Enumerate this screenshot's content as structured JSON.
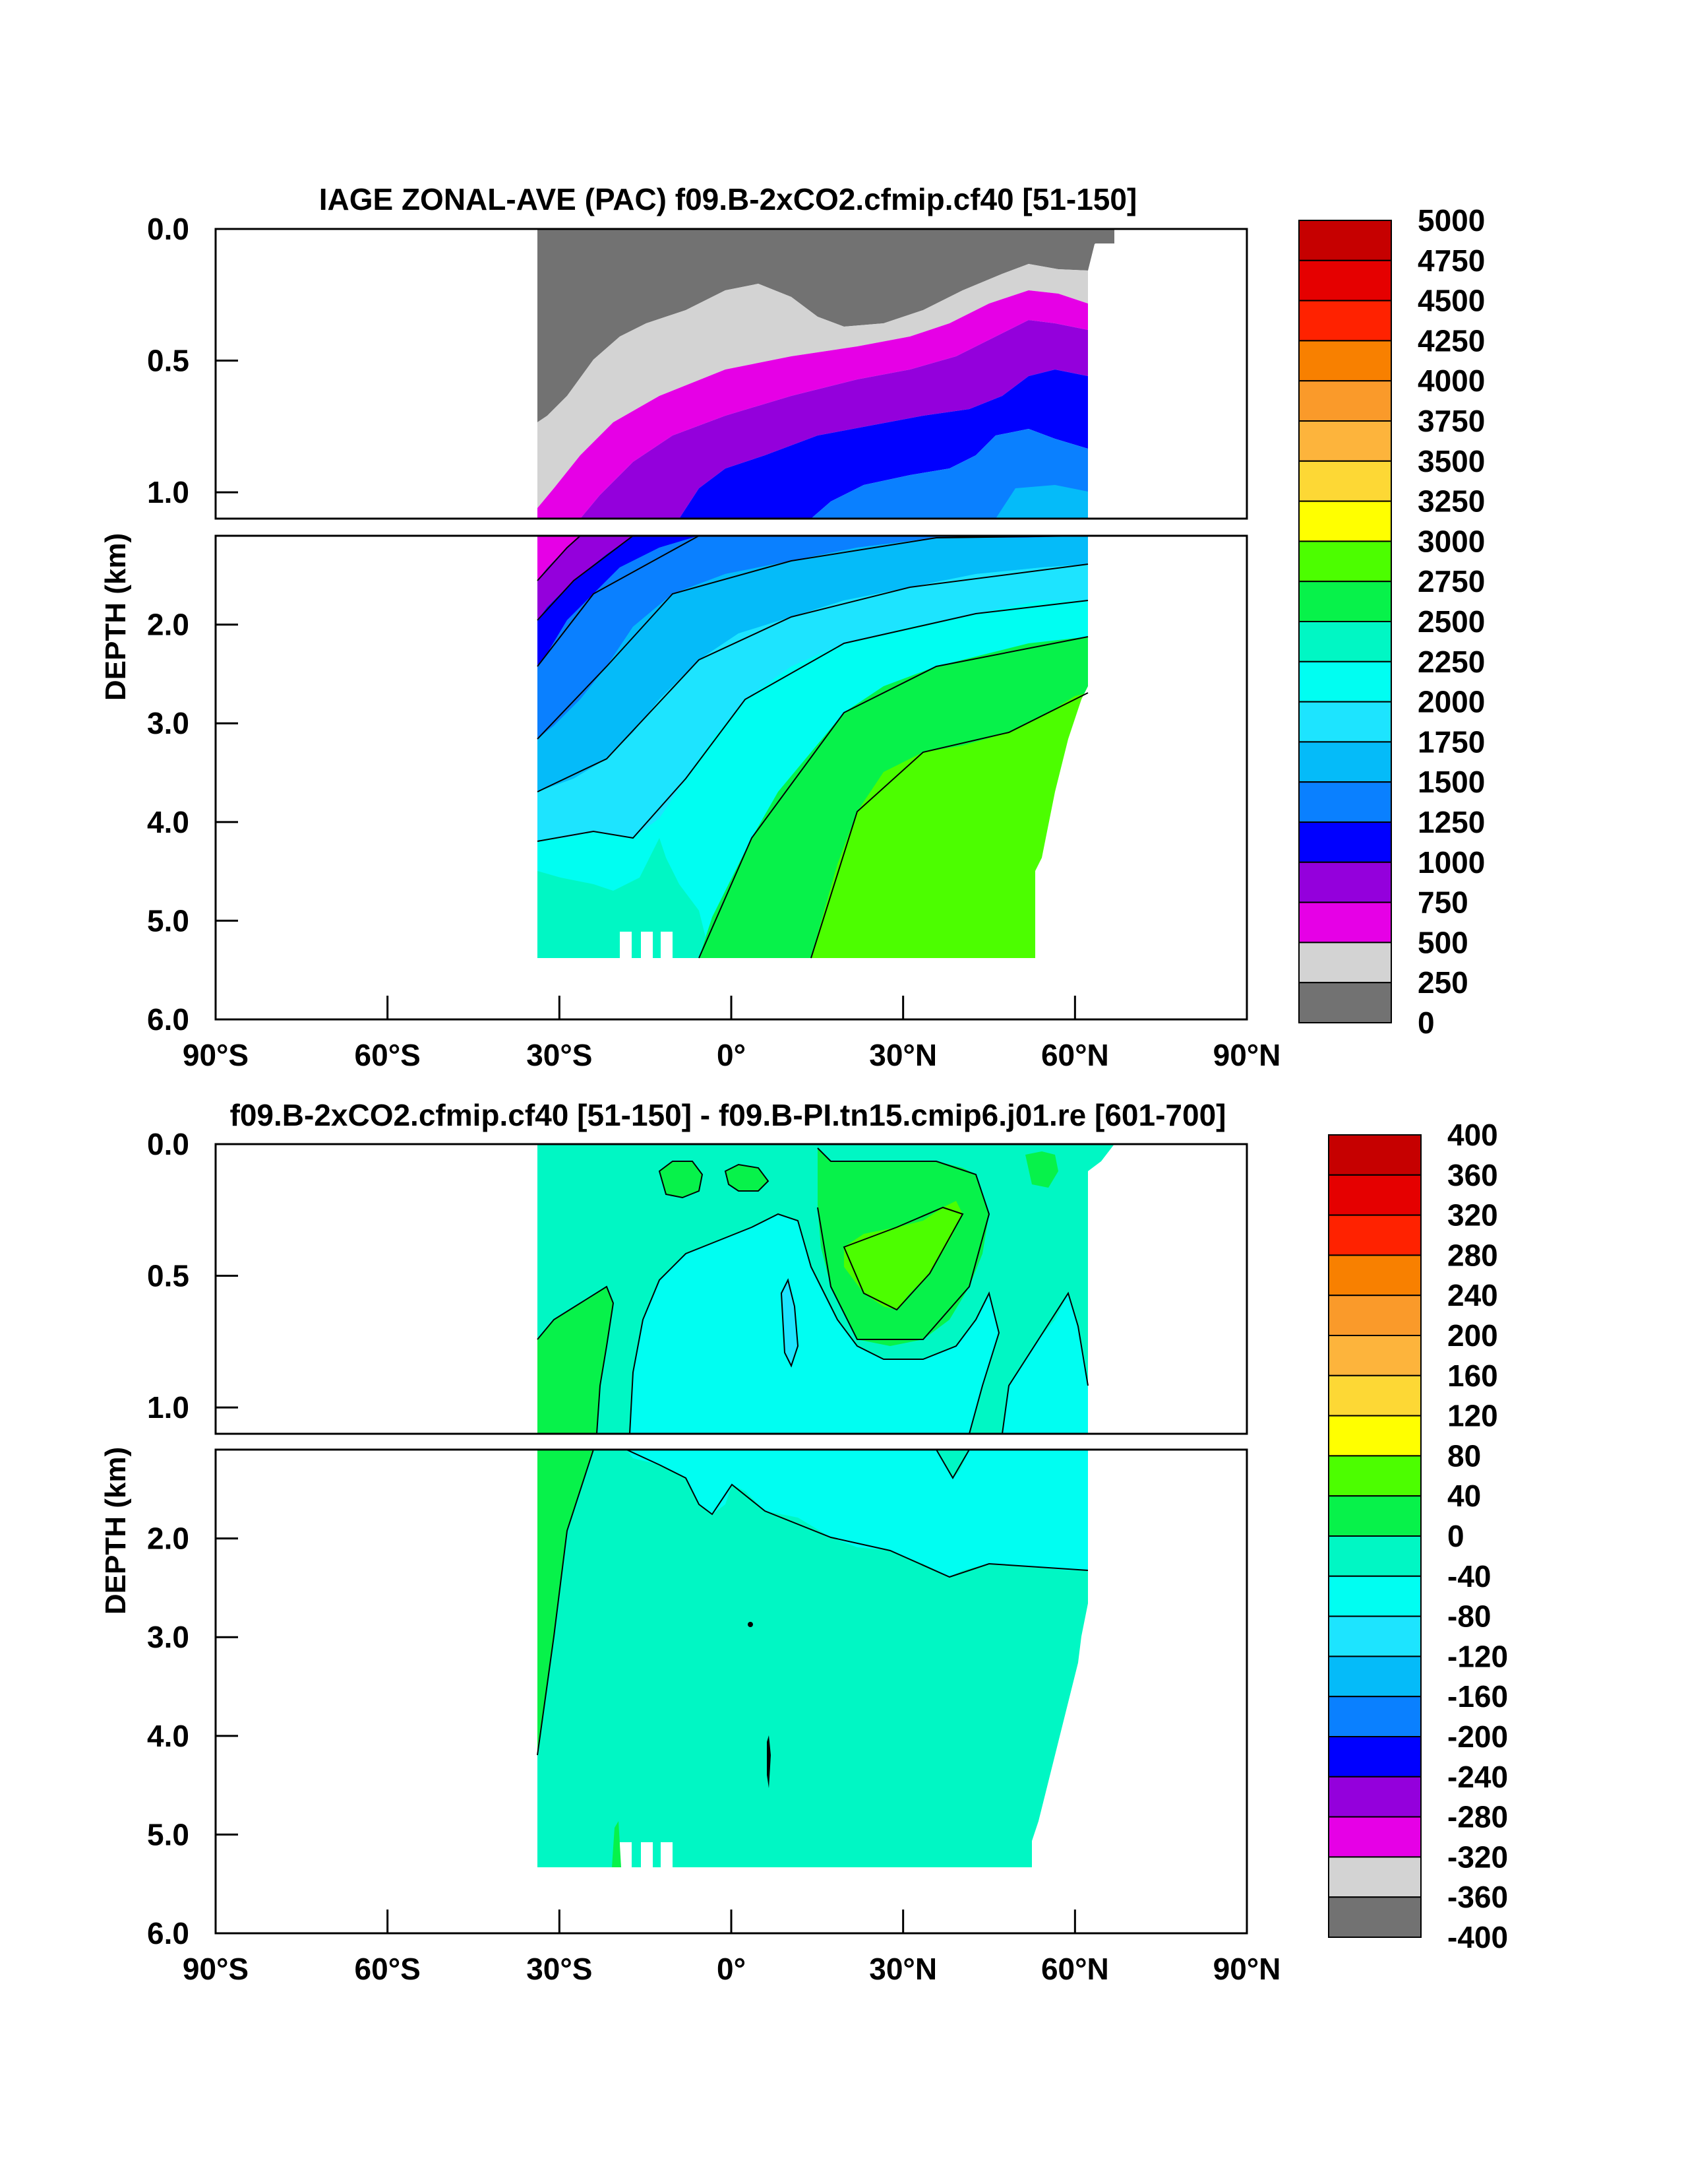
{
  "chart_data": [
    {
      "type": "heatmap",
      "title": "IAGE ZONAL-AVE (PAC) f09.B-2xCO2.cfmip.cf40 [51-150]",
      "ylabel": "DEPTH (km)",
      "xlabel": "",
      "xlim": [
        -90,
        90
      ],
      "ylim": [
        6.0,
        0.0
      ],
      "x_ticks": [
        "90°S",
        "60°S",
        "30°S",
        "0°",
        "30°N",
        "60°N",
        "90°N"
      ],
      "y_ticks_upper": [
        "0.0",
        "0.5",
        "1.0"
      ],
      "y_ticks_lower": [
        "2.0",
        "3.0",
        "4.0",
        "5.0",
        "6.0"
      ],
      "colorbar_labels": [
        "5000",
        "4750",
        "4500",
        "4250",
        "4000",
        "3750",
        "3500",
        "3250",
        "3000",
        "2750",
        "2500",
        "2250",
        "2000",
        "1750",
        "1500",
        "1250",
        "1000",
        "750",
        "500",
        "250",
        "0"
      ],
      "colorbar_colors": [
        "#c60000",
        "#e50000",
        "#ff2200",
        "#f88000",
        "#fa9a2a",
        "#fdb43c",
        "#fdd835",
        "#ffff00",
        "#4cfe00",
        "#07f24a",
        "#00f7c4",
        "#00fef2",
        "#1de4ff",
        "#05bbf9",
        "#0a80ff",
        "#0000ff",
        "#9400dc",
        "#e600e6",
        "#d3d3d3",
        "#727272"
      ],
      "contour_levels": [
        250,
        500,
        750,
        1000,
        1250,
        1500,
        1750,
        2000,
        2250,
        2500,
        2750
      ],
      "ocean_extent_deg": [
        -34,
        62
      ]
    },
    {
      "type": "heatmap",
      "title": "f09.B-2xCO2.cfmip.cf40 [51-150] - f09.B-PI.tn15.cmip6.j01.re [601-700]",
      "ylabel": "DEPTH (km)",
      "xlabel": "",
      "xlim": [
        -90,
        90
      ],
      "ylim": [
        6.0,
        0.0
      ],
      "x_ticks": [
        "90°S",
        "60°S",
        "30°S",
        "0°",
        "30°N",
        "60°N",
        "90°N"
      ],
      "y_ticks_upper": [
        "0.0",
        "0.5",
        "1.0"
      ],
      "y_ticks_lower": [
        "2.0",
        "3.0",
        "4.0",
        "5.0",
        "6.0"
      ],
      "colorbar_labels": [
        "400",
        "360",
        "320",
        "280",
        "240",
        "200",
        "160",
        "120",
        "80",
        "40",
        "0",
        "-40",
        "-80",
        "-120",
        "-160",
        "-200",
        "-240",
        "-280",
        "-320",
        "-360",
        "-400"
      ],
      "colorbar_colors": [
        "#c60000",
        "#e50000",
        "#ff2200",
        "#f88000",
        "#fa9a2a",
        "#fdb43c",
        "#fdd835",
        "#ffff00",
        "#4cfe00",
        "#07f24a",
        "#00f7c4",
        "#00fef2",
        "#1de4ff",
        "#05bbf9",
        "#0a80ff",
        "#0000ff",
        "#9400dc",
        "#e600e6",
        "#d3d3d3",
        "#727272"
      ],
      "dominant_range": [
        -40,
        0
      ],
      "ocean_extent_deg": [
        -34,
        62
      ]
    }
  ]
}
